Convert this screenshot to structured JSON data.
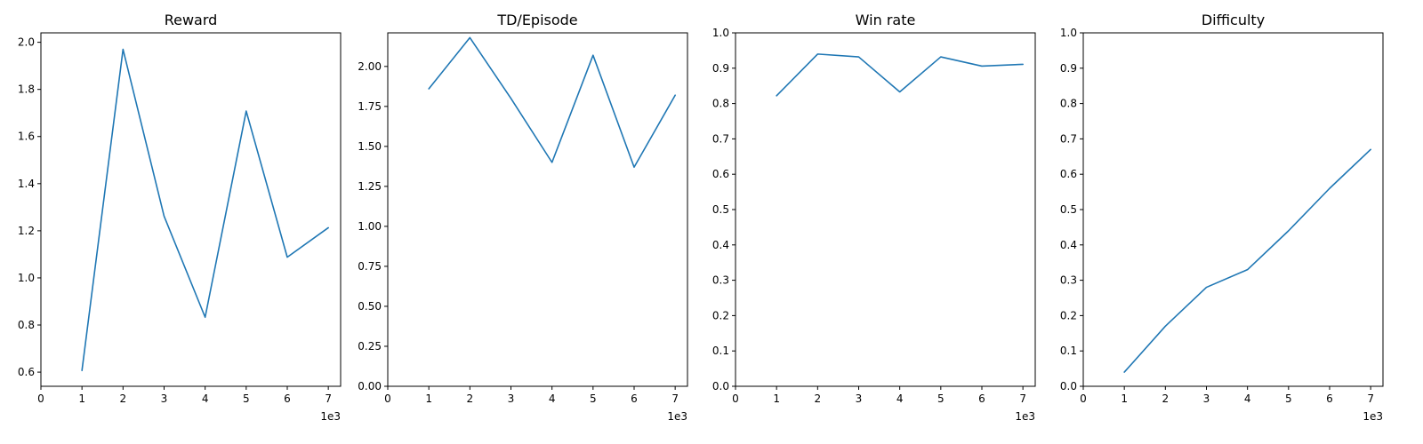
{
  "chart_data": [
    {
      "type": "line",
      "title": "Reward",
      "x": [
        1000,
        2000,
        3000,
        4000,
        5000,
        6000,
        7000
      ],
      "series": [
        {
          "values": [
            0.607,
            1.97,
            1.262,
            0.833,
            1.708,
            1.088,
            1.213
          ]
        }
      ],
      "xlim": [
        0,
        7300
      ],
      "ylim": [
        0.54,
        2.04
      ],
      "xticks": [
        0,
        1000,
        2000,
        3000,
        4000,
        5000,
        6000,
        7000
      ],
      "xtick_labels": [
        "0",
        "1",
        "2",
        "3",
        "4",
        "5",
        "6",
        "7"
      ],
      "x_offset_label": "1e3",
      "yticks": [
        0.6,
        0.8,
        1.0,
        1.2,
        1.4,
        1.6,
        1.8,
        2.0
      ],
      "ytick_labels": [
        "0.6",
        "0.8",
        "1.0",
        "1.2",
        "1.4",
        "1.6",
        "1.8",
        "2.0"
      ],
      "grid": false,
      "color": "#1f77b4"
    },
    {
      "type": "line",
      "title": "TD/Episode",
      "x": [
        1000,
        2000,
        3000,
        4000,
        5000,
        6000,
        7000
      ],
      "series": [
        {
          "values": [
            1.86,
            2.18,
            1.8,
            1.4,
            2.07,
            1.37,
            1.82
          ]
        }
      ],
      "xlim": [
        0,
        7300
      ],
      "ylim": [
        0,
        2.21
      ],
      "xticks": [
        0,
        1000,
        2000,
        3000,
        4000,
        5000,
        6000,
        7000
      ],
      "xtick_labels": [
        "0",
        "1",
        "2",
        "3",
        "4",
        "5",
        "6",
        "7"
      ],
      "x_offset_label": "1e3",
      "yticks": [
        0,
        0.25,
        0.5,
        0.75,
        1.0,
        1.25,
        1.5,
        1.75,
        2.0
      ],
      "ytick_labels": [
        "0.00",
        "0.25",
        "0.50",
        "0.75",
        "1.00",
        "1.25",
        "1.50",
        "1.75",
        "2.00"
      ],
      "grid": false,
      "color": "#1f77b4"
    },
    {
      "type": "line",
      "title": "Win rate",
      "x": [
        1000,
        2000,
        3000,
        4000,
        5000,
        6000,
        7000
      ],
      "series": [
        {
          "values": [
            0.822,
            0.94,
            0.932,
            0.833,
            0.932,
            0.906,
            0.911
          ]
        }
      ],
      "xlim": [
        0,
        7300
      ],
      "ylim": [
        0,
        1.0
      ],
      "xticks": [
        0,
        1000,
        2000,
        3000,
        4000,
        5000,
        6000,
        7000
      ],
      "xtick_labels": [
        "0",
        "1",
        "2",
        "3",
        "4",
        "5",
        "6",
        "7"
      ],
      "x_offset_label": "1e3",
      "yticks": [
        0,
        0.1,
        0.2,
        0.3,
        0.4,
        0.5,
        0.6,
        0.7,
        0.8,
        0.9,
        1.0
      ],
      "ytick_labels": [
        "0.0",
        "0.1",
        "0.2",
        "0.3",
        "0.4",
        "0.5",
        "0.6",
        "0.7",
        "0.8",
        "0.9",
        "1.0"
      ],
      "grid": false,
      "color": "#1f77b4"
    },
    {
      "type": "line",
      "title": "Difficulty",
      "x": [
        1000,
        2000,
        3000,
        4000,
        5000,
        6000,
        7000
      ],
      "series": [
        {
          "values": [
            0.04,
            0.17,
            0.28,
            0.33,
            0.44,
            0.56,
            0.67
          ]
        }
      ],
      "xlim": [
        0,
        7300
      ],
      "ylim": [
        0,
        1.0
      ],
      "xticks": [
        0,
        1000,
        2000,
        3000,
        4000,
        5000,
        6000,
        7000
      ],
      "xtick_labels": [
        "0",
        "1",
        "2",
        "3",
        "4",
        "5",
        "6",
        "7"
      ],
      "x_offset_label": "1e3",
      "yticks": [
        0,
        0.1,
        0.2,
        0.3,
        0.4,
        0.5,
        0.6,
        0.7,
        0.8,
        0.9,
        1.0
      ],
      "ytick_labels": [
        "0.0",
        "0.1",
        "0.2",
        "0.3",
        "0.4",
        "0.5",
        "0.6",
        "0.7",
        "0.8",
        "0.9",
        "1.0"
      ],
      "grid": false,
      "color": "#1f77b4"
    }
  ]
}
